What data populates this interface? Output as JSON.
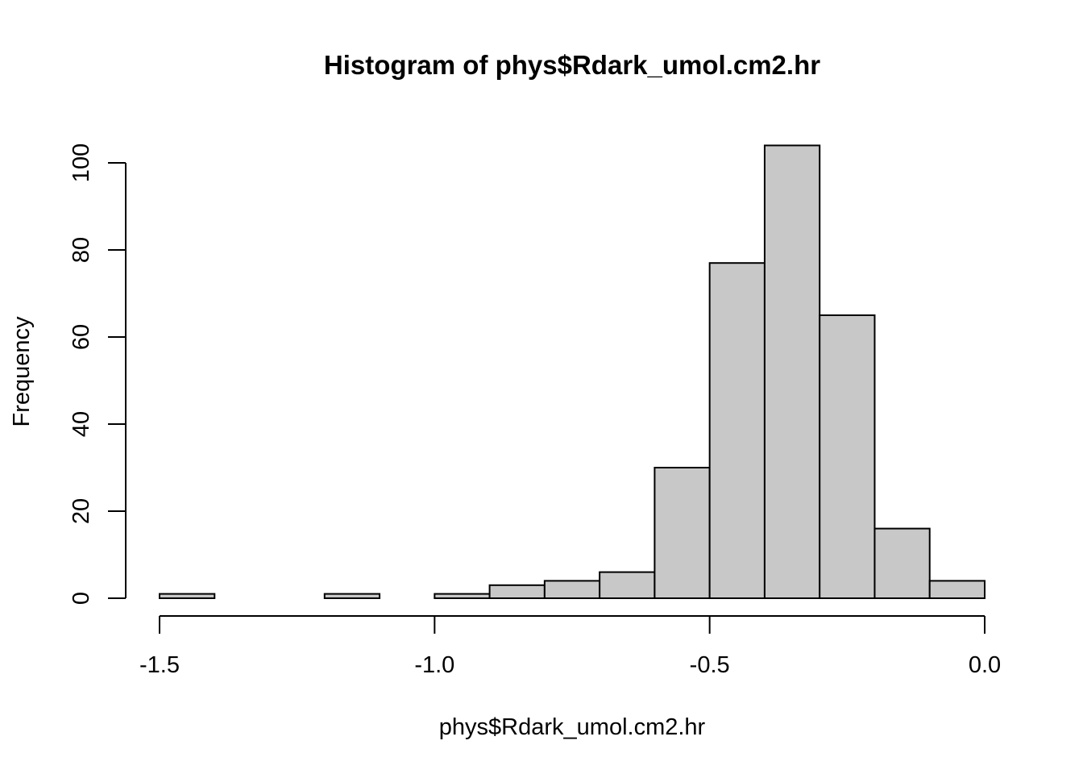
{
  "chart_data": {
    "type": "bar",
    "subtype": "histogram",
    "title": "Histogram of phys$Rdark_umol.cm2.hr",
    "xlabel": "phys$Rdark_umol.cm2.hr",
    "ylabel": "Frequency",
    "bin_edges": [
      -1.5,
      -1.4,
      -1.3,
      -1.2,
      -1.1,
      -1.0,
      -0.9,
      -0.8,
      -0.7,
      -0.6,
      -0.5,
      -0.4,
      -0.3,
      -0.2,
      -0.1,
      0.0
    ],
    "values": [
      1,
      0,
      0,
      1,
      0,
      1,
      3,
      4,
      6,
      30,
      77,
      104,
      65,
      16,
      4
    ],
    "xlim": [
      -1.5,
      0.0
    ],
    "ylim": [
      0,
      104
    ],
    "x_ticks": [
      -1.5,
      -1.0,
      -0.5,
      0.0
    ],
    "x_tick_labels": [
      "-1.5",
      "-1.0",
      "-0.5",
      "0.0"
    ],
    "y_ticks": [
      0,
      20,
      40,
      60,
      80,
      100
    ],
    "y_tick_labels": [
      "0",
      "20",
      "40",
      "60",
      "80",
      "100"
    ],
    "bar_fill": "#c8c8c8",
    "bar_stroke": "#000000",
    "grid": false,
    "legend": "none"
  }
}
